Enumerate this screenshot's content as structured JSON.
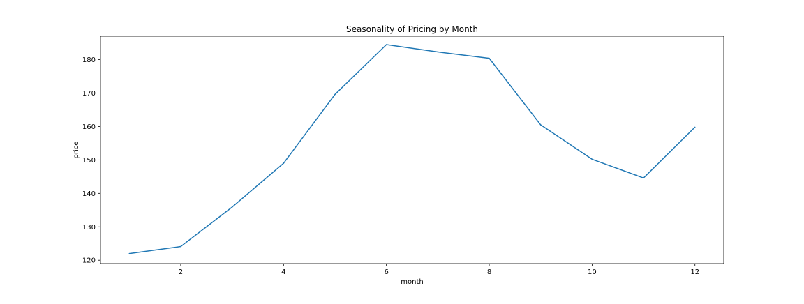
{
  "chart_data": {
    "type": "line",
    "title": "Seasonality of Pricing by Month",
    "xlabel": "month",
    "ylabel": "price",
    "xlim": [
      0.44,
      12.56
    ],
    "ylim": [
      119,
      187
    ],
    "xticks": [
      2,
      4,
      6,
      8,
      10,
      12
    ],
    "yticks": [
      120,
      130,
      140,
      150,
      160,
      170,
      180
    ],
    "grid": false,
    "series": [
      {
        "x": [
          1,
          2,
          3,
          4,
          5,
          6,
          7,
          8,
          9,
          10,
          11,
          12
        ],
        "values": [
          122.0,
          124.1,
          135.9,
          149.0,
          169.6,
          184.5,
          182.3,
          180.4,
          160.5,
          150.2,
          144.6,
          159.8
        ],
        "color": "#1f77b4"
      }
    ]
  }
}
